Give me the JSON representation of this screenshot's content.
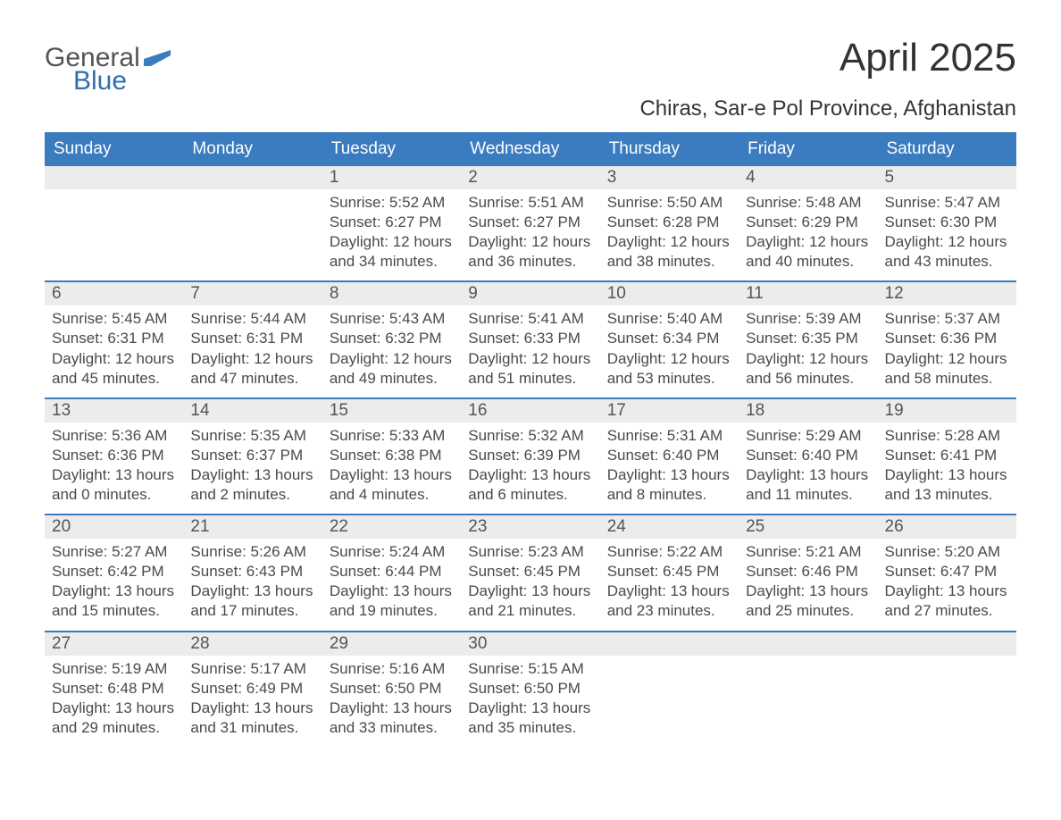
{
  "logo": {
    "general": "General",
    "blue": "Blue"
  },
  "title": "April 2025",
  "location": "Chiras, Sar-e Pol Province, Afghanistan",
  "colors": {
    "header_bg": "#3b7bbf",
    "header_text": "#ffffff",
    "daynum_bg": "#ececec",
    "body_text": "#4a4a4a",
    "page_bg": "#ffffff",
    "week_border": "#3b7bbf"
  },
  "day_names": [
    "Sunday",
    "Monday",
    "Tuesday",
    "Wednesday",
    "Thursday",
    "Friday",
    "Saturday"
  ],
  "weeks": [
    [
      {
        "num": "",
        "sunrise": "",
        "sunset": "",
        "daylight": ""
      },
      {
        "num": "",
        "sunrise": "",
        "sunset": "",
        "daylight": ""
      },
      {
        "num": "1",
        "sunrise": "Sunrise: 5:52 AM",
        "sunset": "Sunset: 6:27 PM",
        "daylight": "Daylight: 12 hours and 34 minutes."
      },
      {
        "num": "2",
        "sunrise": "Sunrise: 5:51 AM",
        "sunset": "Sunset: 6:27 PM",
        "daylight": "Daylight: 12 hours and 36 minutes."
      },
      {
        "num": "3",
        "sunrise": "Sunrise: 5:50 AM",
        "sunset": "Sunset: 6:28 PM",
        "daylight": "Daylight: 12 hours and 38 minutes."
      },
      {
        "num": "4",
        "sunrise": "Sunrise: 5:48 AM",
        "sunset": "Sunset: 6:29 PM",
        "daylight": "Daylight: 12 hours and 40 minutes."
      },
      {
        "num": "5",
        "sunrise": "Sunrise: 5:47 AM",
        "sunset": "Sunset: 6:30 PM",
        "daylight": "Daylight: 12 hours and 43 minutes."
      }
    ],
    [
      {
        "num": "6",
        "sunrise": "Sunrise: 5:45 AM",
        "sunset": "Sunset: 6:31 PM",
        "daylight": "Daylight: 12 hours and 45 minutes."
      },
      {
        "num": "7",
        "sunrise": "Sunrise: 5:44 AM",
        "sunset": "Sunset: 6:31 PM",
        "daylight": "Daylight: 12 hours and 47 minutes."
      },
      {
        "num": "8",
        "sunrise": "Sunrise: 5:43 AM",
        "sunset": "Sunset: 6:32 PM",
        "daylight": "Daylight: 12 hours and 49 minutes."
      },
      {
        "num": "9",
        "sunrise": "Sunrise: 5:41 AM",
        "sunset": "Sunset: 6:33 PM",
        "daylight": "Daylight: 12 hours and 51 minutes."
      },
      {
        "num": "10",
        "sunrise": "Sunrise: 5:40 AM",
        "sunset": "Sunset: 6:34 PM",
        "daylight": "Daylight: 12 hours and 53 minutes."
      },
      {
        "num": "11",
        "sunrise": "Sunrise: 5:39 AM",
        "sunset": "Sunset: 6:35 PM",
        "daylight": "Daylight: 12 hours and 56 minutes."
      },
      {
        "num": "12",
        "sunrise": "Sunrise: 5:37 AM",
        "sunset": "Sunset: 6:36 PM",
        "daylight": "Daylight: 12 hours and 58 minutes."
      }
    ],
    [
      {
        "num": "13",
        "sunrise": "Sunrise: 5:36 AM",
        "sunset": "Sunset: 6:36 PM",
        "daylight": "Daylight: 13 hours and 0 minutes."
      },
      {
        "num": "14",
        "sunrise": "Sunrise: 5:35 AM",
        "sunset": "Sunset: 6:37 PM",
        "daylight": "Daylight: 13 hours and 2 minutes."
      },
      {
        "num": "15",
        "sunrise": "Sunrise: 5:33 AM",
        "sunset": "Sunset: 6:38 PM",
        "daylight": "Daylight: 13 hours and 4 minutes."
      },
      {
        "num": "16",
        "sunrise": "Sunrise: 5:32 AM",
        "sunset": "Sunset: 6:39 PM",
        "daylight": "Daylight: 13 hours and 6 minutes."
      },
      {
        "num": "17",
        "sunrise": "Sunrise: 5:31 AM",
        "sunset": "Sunset: 6:40 PM",
        "daylight": "Daylight: 13 hours and 8 minutes."
      },
      {
        "num": "18",
        "sunrise": "Sunrise: 5:29 AM",
        "sunset": "Sunset: 6:40 PM",
        "daylight": "Daylight: 13 hours and 11 minutes."
      },
      {
        "num": "19",
        "sunrise": "Sunrise: 5:28 AM",
        "sunset": "Sunset: 6:41 PM",
        "daylight": "Daylight: 13 hours and 13 minutes."
      }
    ],
    [
      {
        "num": "20",
        "sunrise": "Sunrise: 5:27 AM",
        "sunset": "Sunset: 6:42 PM",
        "daylight": "Daylight: 13 hours and 15 minutes."
      },
      {
        "num": "21",
        "sunrise": "Sunrise: 5:26 AM",
        "sunset": "Sunset: 6:43 PM",
        "daylight": "Daylight: 13 hours and 17 minutes."
      },
      {
        "num": "22",
        "sunrise": "Sunrise: 5:24 AM",
        "sunset": "Sunset: 6:44 PM",
        "daylight": "Daylight: 13 hours and 19 minutes."
      },
      {
        "num": "23",
        "sunrise": "Sunrise: 5:23 AM",
        "sunset": "Sunset: 6:45 PM",
        "daylight": "Daylight: 13 hours and 21 minutes."
      },
      {
        "num": "24",
        "sunrise": "Sunrise: 5:22 AM",
        "sunset": "Sunset: 6:45 PM",
        "daylight": "Daylight: 13 hours and 23 minutes."
      },
      {
        "num": "25",
        "sunrise": "Sunrise: 5:21 AM",
        "sunset": "Sunset: 6:46 PM",
        "daylight": "Daylight: 13 hours and 25 minutes."
      },
      {
        "num": "26",
        "sunrise": "Sunrise: 5:20 AM",
        "sunset": "Sunset: 6:47 PM",
        "daylight": "Daylight: 13 hours and 27 minutes."
      }
    ],
    [
      {
        "num": "27",
        "sunrise": "Sunrise: 5:19 AM",
        "sunset": "Sunset: 6:48 PM",
        "daylight": "Daylight: 13 hours and 29 minutes."
      },
      {
        "num": "28",
        "sunrise": "Sunrise: 5:17 AM",
        "sunset": "Sunset: 6:49 PM",
        "daylight": "Daylight: 13 hours and 31 minutes."
      },
      {
        "num": "29",
        "sunrise": "Sunrise: 5:16 AM",
        "sunset": "Sunset: 6:50 PM",
        "daylight": "Daylight: 13 hours and 33 minutes."
      },
      {
        "num": "30",
        "sunrise": "Sunrise: 5:15 AM",
        "sunset": "Sunset: 6:50 PM",
        "daylight": "Daylight: 13 hours and 35 minutes."
      },
      {
        "num": "",
        "sunrise": "",
        "sunset": "",
        "daylight": ""
      },
      {
        "num": "",
        "sunrise": "",
        "sunset": "",
        "daylight": ""
      },
      {
        "num": "",
        "sunrise": "",
        "sunset": "",
        "daylight": ""
      }
    ]
  ]
}
